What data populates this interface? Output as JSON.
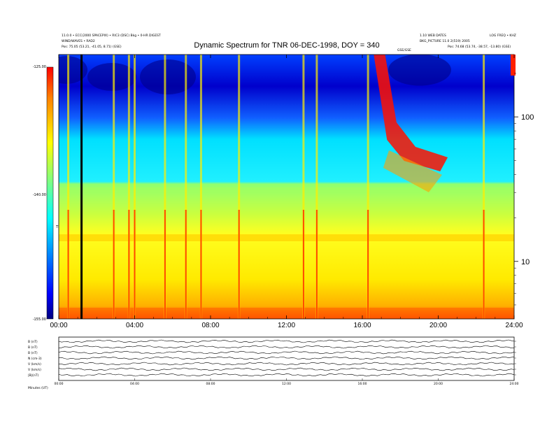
{
  "header": {
    "left_line1": "11.0.0 • ECC(2000 SPACEPIX) • RIC3 (DSC) Bkg • 0-HR DIGEST",
    "left_line2": "WIND/WAVES • RAD2",
    "left_line3": "Pos:   75.05 (53.21, -41.05, 8.71) (GSE)",
    "right_line1": "1.10 WEB DATES",
    "right_line2": "BKG_PICTURE 11.0 2(519) 2005",
    "right_line3": "Pos:   74.68 (53.74, -38.57, -13.80) (GSE)",
    "right_corner": "LOG FREQ • KHZ",
    "center_small": "GSE/GSE"
  },
  "colorbar": {
    "unit_label": "TNR",
    "colors": [
      "#00007f",
      "#0000ff",
      "#0080ff",
      "#00ffff",
      "#80ff80",
      "#ffff00",
      "#ff8000",
      "#ff0000",
      "#7f0000"
    ]
  },
  "panel_labels": [
    "B (nT)",
    "B (nT)",
    "B (nT)",
    "N (cm-3)",
    "V (km/s)",
    "V (km/s)",
    "|B|(nT)"
  ],
  "bottom_label": "Minutes (UT)",
  "chart_data": {
    "type": "heatmap",
    "title": "Dynamic Spectrum for TNR 06-DEC-1998, DOY = 340",
    "x_ticks": [
      "00:00",
      "04:00",
      "08:00",
      "12:00",
      "16:00",
      "20:00",
      "24:00"
    ],
    "x_range_hours": [
      0,
      24
    ],
    "y_scale": "log",
    "y_unit": "kHz",
    "y_ticks": [
      10,
      100
    ],
    "y_range": [
      4,
      270
    ],
    "colorbar_ticks": [
      "-125.00",
      "-140.00",
      "-155.00"
    ],
    "colorbar_range": [
      -155,
      -125
    ],
    "grid": false,
    "bottom_panel_ticks": [
      "00:00",
      "04:00",
      "08:00",
      "12:00",
      "16:00",
      "20:00",
      "24:00"
    ],
    "features": [
      {
        "label": "Type III radio bursts",
        "times_hours": [
          0.5,
          2.9,
          3.7,
          4.0,
          5.6,
          6.7,
          7.5,
          9.5,
          12.9,
          13.6,
          16.3,
          22.4
        ]
      },
      {
        "label": "Type II radio burst",
        "start_hours": 16.6,
        "end_hours": 20.5
      }
    ]
  }
}
